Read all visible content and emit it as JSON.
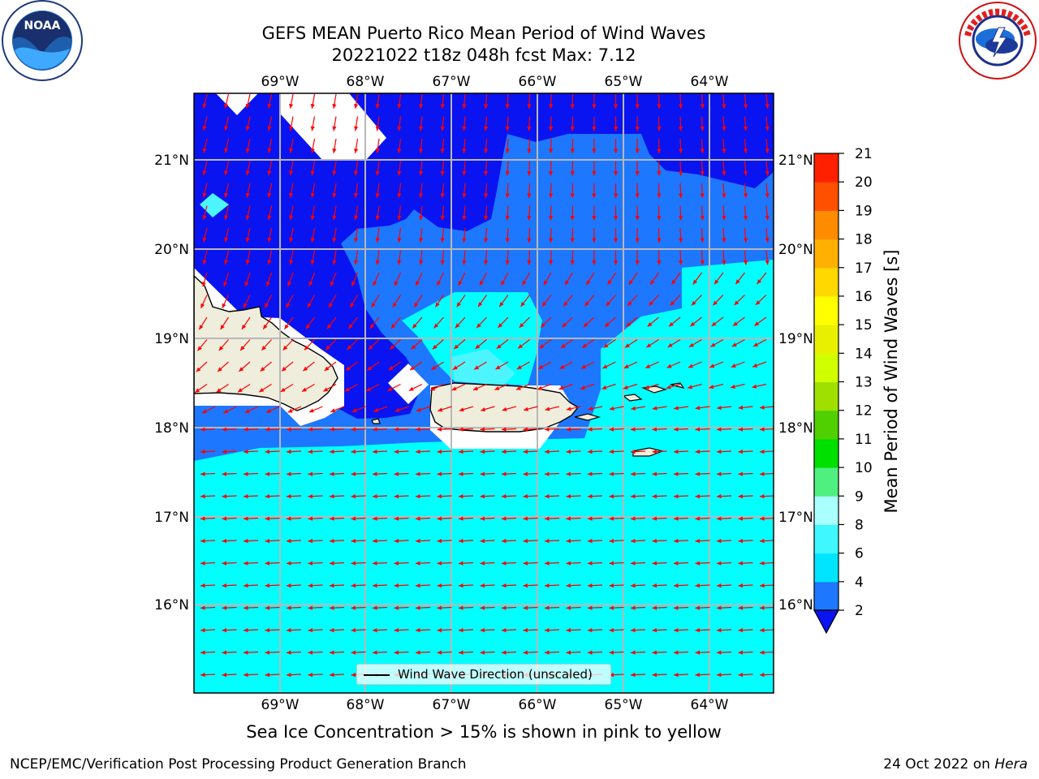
{
  "title_line1": "GEFS MEAN Puerto Rico Mean Period of Wind Waves",
  "title_line2": "20221022 t18z 048h fcst   Max: 7.12",
  "lon_labels": [
    "69°W",
    "68°W",
    "67°W",
    "66°W",
    "65°W",
    "64°W"
  ],
  "lat_labels": [
    "21°N",
    "20°N",
    "19°N",
    "18°N",
    "17°N",
    "16°N"
  ],
  "colorbar": {
    "label": "Mean Period of Wind Waves [s]",
    "ticks": [
      "2",
      "4",
      "6",
      "8",
      "9",
      "10",
      "11",
      "12",
      "13",
      "14",
      "15",
      "16",
      "17",
      "18",
      "19",
      "20",
      "21"
    ],
    "colors": [
      "#1e77ff",
      "#00e5ff",
      "#3ef7ff",
      "#aaffff",
      "#50f080",
      "#00e000",
      "#50d000",
      "#a0e000",
      "#d0ff00",
      "#e8f000",
      "#ffff00",
      "#ffd800",
      "#ffb000",
      "#ff8c00",
      "#ff5000",
      "#ff2000"
    ],
    "under_color": "#0a14f0",
    "top_color": "#ff0000"
  },
  "legend_label": "Wind Wave Direction (unscaled)",
  "note": "Sea Ice Concentration > 15% is shown in pink to yellow",
  "footer_left": "NCEP/EMC/Verification Post Processing Product Generation Branch",
  "footer_right_date": "24 Oct 2022 on",
  "footer_right_host": "Hera",
  "colors": {
    "deep_blue": "#0a14f0",
    "mid_blue": "#1e77ff",
    "cyan": "#00ffff",
    "light_cyan": "#4cf5ff",
    "land": "#efeedd",
    "arrow": "#ff0000",
    "grid": "#b8b8b8"
  }
}
